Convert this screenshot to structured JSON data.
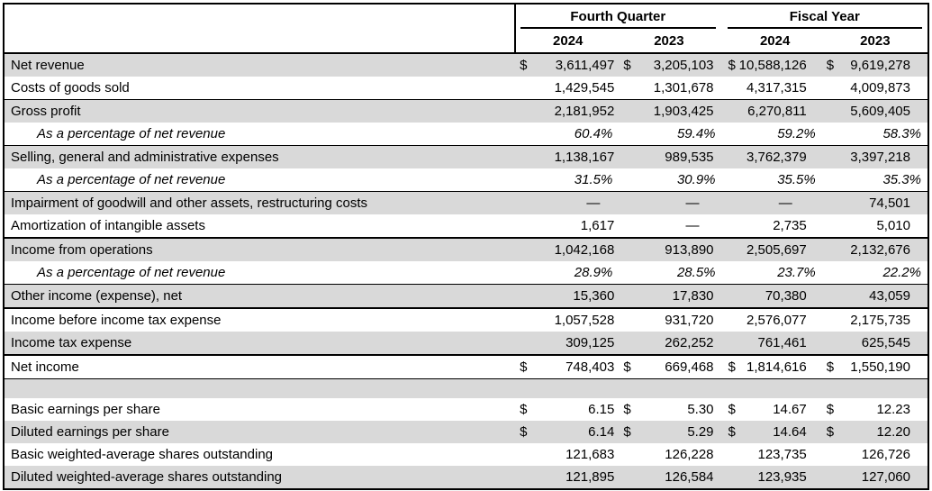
{
  "colors": {
    "row_shade": "#d9d9d9",
    "border": "#000000",
    "text": "#000000"
  },
  "header": {
    "groups": [
      {
        "label": "Fourth Quarter",
        "years": [
          "2024",
          "2023"
        ]
      },
      {
        "label": "Fiscal Year",
        "years": [
          "2024",
          "2023"
        ]
      }
    ]
  },
  "rows": [
    {
      "label": "Net revenue",
      "shaded": true,
      "dollar": true,
      "values": [
        "3,611,497",
        "3,205,103",
        "10,588,126",
        "9,619,278"
      ]
    },
    {
      "label": "Costs of goods sold",
      "values": [
        "1,429,545",
        "1,301,678",
        "4,317,315",
        "4,009,873"
      ]
    },
    {
      "label": "Gross profit",
      "shaded": true,
      "border_top": "thin",
      "values": [
        "2,181,952",
        "1,903,425",
        "6,270,811",
        "5,609,405"
      ]
    },
    {
      "label": "As a percentage of net revenue",
      "italic": true,
      "pct": true,
      "values": [
        "60.4%",
        "59.4%",
        "59.2%",
        "58.3%"
      ]
    },
    {
      "label": "Selling, general and administrative expenses",
      "shaded": true,
      "border_top": "thin",
      "values": [
        "1,138,167",
        "989,535",
        "3,762,379",
        "3,397,218"
      ]
    },
    {
      "label": "As a percentage of net revenue",
      "italic": true,
      "pct": true,
      "values": [
        "31.5%",
        "30.9%",
        "35.5%",
        "35.3%"
      ]
    },
    {
      "label": "Impairment of goodwill and other assets, restructuring costs",
      "shaded": true,
      "border_top": "thin",
      "values": [
        "—",
        "—",
        "—",
        "74,501"
      ]
    },
    {
      "label": "Amortization of intangible assets",
      "values": [
        "1,617",
        "—",
        "2,735",
        "5,010"
      ]
    },
    {
      "label": "Income from operations",
      "shaded": true,
      "border_top": "thick",
      "values": [
        "1,042,168",
        "913,890",
        "2,505,697",
        "2,132,676"
      ]
    },
    {
      "label": "As a percentage of net revenue",
      "italic": true,
      "pct": true,
      "values": [
        "28.9%",
        "28.5%",
        "23.7%",
        "22.2%"
      ]
    },
    {
      "label": "Other income (expense), net",
      "shaded": true,
      "border_top": "thin",
      "values": [
        "15,360",
        "17,830",
        "70,380",
        "43,059"
      ]
    },
    {
      "label": "Income before income tax expense",
      "border_top": "thick",
      "values": [
        "1,057,528",
        "931,720",
        "2,576,077",
        "2,175,735"
      ]
    },
    {
      "label": "Income tax expense",
      "shaded": true,
      "values": [
        "309,125",
        "262,252",
        "761,461",
        "625,545"
      ]
    },
    {
      "label": "Net income",
      "border_top": "thick",
      "border_bottom": "thin",
      "dollar": true,
      "values": [
        "748,403",
        "669,468",
        "1,814,616",
        "1,550,190"
      ]
    },
    {
      "spacer": true,
      "shaded": true
    },
    {
      "label": "Basic earnings per share",
      "dollar": true,
      "values": [
        "6.15",
        "5.30",
        "14.67",
        "12.23"
      ]
    },
    {
      "label": "Diluted earnings per share",
      "shaded": true,
      "dollar": true,
      "values": [
        "6.14",
        "5.29",
        "14.64",
        "12.20"
      ]
    },
    {
      "label": "Basic weighted-average shares outstanding",
      "values": [
        "121,683",
        "126,228",
        "123,735",
        "126,726"
      ]
    },
    {
      "label": "Diluted weighted-average shares outstanding",
      "shaded": true,
      "values": [
        "121,895",
        "126,584",
        "123,935",
        "127,060"
      ]
    }
  ]
}
